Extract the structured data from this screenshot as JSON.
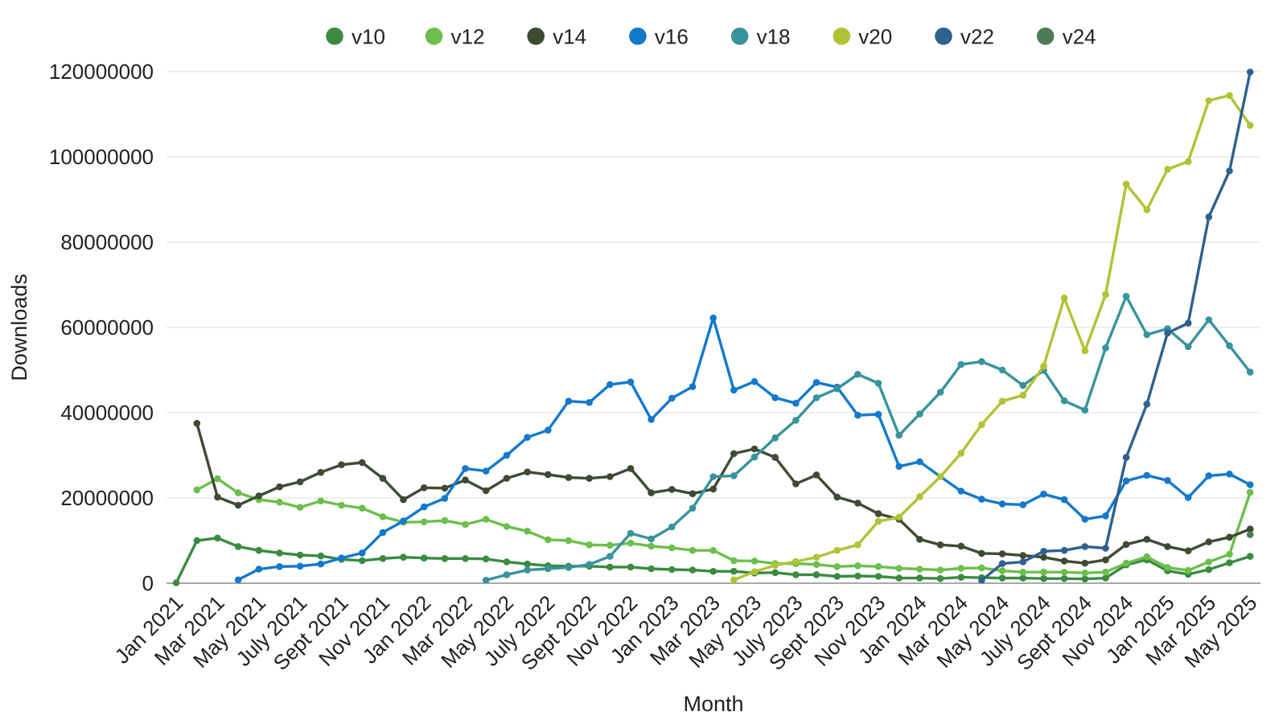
{
  "chart_data": {
    "type": "line",
    "title": "",
    "xlabel": "Month",
    "ylabel": "Downloads",
    "legend_position": "top",
    "grid": "horizontal",
    "ylim": [
      0,
      120000000
    ],
    "y_ticks": [
      0,
      20000000,
      40000000,
      60000000,
      80000000,
      100000000,
      120000000
    ],
    "x_tick_every": 2,
    "x": [
      "Jan 2021",
      "Feb 2021",
      "Mar 2021",
      "Apr 2021",
      "May 2021",
      "June 2021",
      "July 2021",
      "Aug 2021",
      "Sept 2021",
      "Oct 2021",
      "Nov 2021",
      "Dec 2021",
      "Jan 2022",
      "Feb 2022",
      "Mar 2022",
      "Apr 2022",
      "May 2022",
      "June 2022",
      "July 2022",
      "Aug 2022",
      "Sept 2022",
      "Oct 2022",
      "Nov 2022",
      "Dec 2022",
      "Jan 2023",
      "Feb 2023",
      "Mar 2023",
      "Apr 2023",
      "May 2023",
      "June 2023",
      "July 2023",
      "Aug 2023",
      "Sept 2023",
      "Oct 2023",
      "Nov 2023",
      "Dec 2023",
      "Jan 2024",
      "Feb 2024",
      "Mar 2024",
      "Apr 2024",
      "May 2024",
      "June 2024",
      "July 2024",
      "Aug 2024",
      "Sept 2024",
      "Oct 2024",
      "Nov 2024",
      "Dec 2024",
      "Jan 2025",
      "Feb 2025",
      "Mar 2025",
      "Apr 2025",
      "May 2025"
    ],
    "series": [
      {
        "name": "v10",
        "color": "#3a8b40",
        "values": [
          100000,
          10000000,
          10600000,
          8600000,
          7700000,
          7100000,
          6600000,
          6400000,
          5600000,
          5300000,
          5800000,
          6100000,
          5900000,
          5800000,
          5800000,
          5700000,
          5000000,
          4500000,
          4100000,
          4000000,
          4000000,
          3800000,
          3800000,
          3400000,
          3200000,
          3100000,
          2800000,
          2800000,
          2400000,
          2500000,
          2000000,
          2000000,
          1600000,
          1700000,
          1600000,
          1200000,
          1200000,
          1100000,
          1400000,
          1300000,
          1200000,
          1200000,
          1100000,
          1100000,
          1000000,
          1200000,
          4300000,
          5500000,
          2900000,
          2100000,
          3200000,
          4800000,
          6300000
        ]
      },
      {
        "name": "v12",
        "color": "#6cbf4d",
        "values": [
          null,
          21900000,
          24500000,
          21200000,
          19600000,
          19000000,
          17800000,
          19300000,
          18300000,
          17600000,
          15600000,
          14300000,
          14400000,
          14700000,
          13800000,
          15000000,
          13300000,
          12200000,
          10200000,
          10000000,
          9000000,
          8900000,
          9400000,
          8700000,
          8300000,
          7700000,
          7700000,
          5300000,
          5200000,
          4600000,
          4600000,
          4400000,
          3900000,
          4100000,
          3900000,
          3500000,
          3300000,
          3100000,
          3500000,
          3600000,
          2900000,
          2600000,
          2600000,
          2600000,
          2400000,
          2600000,
          4700000,
          6200000,
          3700000,
          3000000,
          5000000,
          6800000,
          21300000
        ]
      },
      {
        "name": "v14",
        "color": "#3f4a33",
        "values": [
          null,
          37500000,
          20200000,
          18300000,
          20500000,
          22600000,
          23800000,
          26000000,
          27800000,
          28300000,
          24600000,
          19600000,
          22400000,
          22300000,
          24200000,
          21700000,
          24600000,
          26100000,
          25500000,
          24800000,
          24600000,
          25000000,
          26900000,
          21200000,
          22000000,
          21000000,
          22100000,
          30400000,
          31500000,
          29500000,
          23300000,
          25400000,
          20200000,
          18800000,
          16300000,
          15000000,
          10300000,
          9000000,
          8700000,
          7000000,
          6900000,
          6500000,
          6100000,
          5200000,
          4700000,
          5500000,
          9100000,
          10300000,
          8600000,
          7600000,
          9700000,
          10800000,
          12700000
        ]
      },
      {
        "name": "v16",
        "color": "#1478cc",
        "values": [
          null,
          null,
          null,
          800000,
          3300000,
          3900000,
          4000000,
          4500000,
          5900000,
          7100000,
          11900000,
          14600000,
          17900000,
          19900000,
          26900000,
          26300000,
          30000000,
          34200000,
          35900000,
          42700000,
          42400000,
          46600000,
          47200000,
          38400000,
          43400000,
          46100000,
          62200000,
          45300000,
          47300000,
          43500000,
          42200000,
          47100000,
          46000000,
          39400000,
          39600000,
          27400000,
          28500000,
          25000000,
          21600000,
          19700000,
          18600000,
          18400000,
          20900000,
          19600000,
          15000000,
          15800000,
          24000000,
          25300000,
          24100000,
          20100000,
          25200000,
          25600000,
          23100000
        ]
      },
      {
        "name": "v18",
        "color": "#38939c",
        "values": [
          null,
          null,
          null,
          null,
          null,
          null,
          null,
          null,
          null,
          null,
          null,
          null,
          null,
          null,
          null,
          700000,
          2000000,
          3100000,
          3400000,
          3700000,
          4400000,
          6300000,
          11700000,
          10400000,
          13200000,
          17600000,
          25000000,
          25200000,
          29600000,
          34100000,
          38200000,
          43500000,
          45600000,
          49000000,
          46900000,
          34700000,
          39700000,
          44800000,
          51300000,
          52000000,
          50000000,
          46400000,
          49900000,
          42800000,
          40600000,
          55200000,
          67300000,
          58300000,
          59700000,
          55500000,
          61800000,
          55700000,
          49500000
        ]
      },
      {
        "name": "v20",
        "color": "#b2c235",
        "values": [
          null,
          null,
          null,
          null,
          null,
          null,
          null,
          null,
          null,
          null,
          null,
          null,
          null,
          null,
          null,
          null,
          null,
          null,
          null,
          null,
          null,
          null,
          null,
          null,
          null,
          null,
          null,
          800000,
          2700000,
          4200000,
          5100000,
          6100000,
          7700000,
          9000000,
          14500000,
          15500000,
          20300000,
          25000000,
          30500000,
          37200000,
          42700000,
          44100000,
          50900000,
          66900000,
          54500000,
          67700000,
          93600000,
          87600000,
          97100000,
          98900000,
          113200000,
          114400000,
          107400000
        ]
      },
      {
        "name": "v22",
        "color": "#2f618f",
        "values": [
          null,
          null,
          null,
          null,
          null,
          null,
          null,
          null,
          null,
          null,
          null,
          null,
          null,
          null,
          null,
          null,
          null,
          null,
          null,
          null,
          null,
          null,
          null,
          null,
          null,
          null,
          null,
          null,
          null,
          null,
          null,
          null,
          null,
          null,
          null,
          null,
          null,
          null,
          null,
          700000,
          4600000,
          5000000,
          7500000,
          7700000,
          8600000,
          8200000,
          29500000,
          42000000,
          58700000,
          61000000,
          85900000,
          96700000,
          119900000
        ]
      },
      {
        "name": "v24",
        "color": "#4e7b57",
        "values": [
          null,
          null,
          null,
          null,
          null,
          null,
          null,
          null,
          null,
          null,
          null,
          null,
          null,
          null,
          null,
          null,
          null,
          null,
          null,
          null,
          null,
          null,
          null,
          null,
          null,
          null,
          null,
          null,
          null,
          null,
          null,
          null,
          null,
          null,
          null,
          null,
          null,
          null,
          null,
          null,
          null,
          null,
          null,
          null,
          null,
          null,
          null,
          null,
          null,
          null,
          null,
          null,
          11400000
        ]
      }
    ]
  },
  "style": {
    "background": "#ffffff",
    "gridline_color": "#e3e3e3",
    "axis_line_color": "#757575",
    "text_color": "#212121"
  }
}
